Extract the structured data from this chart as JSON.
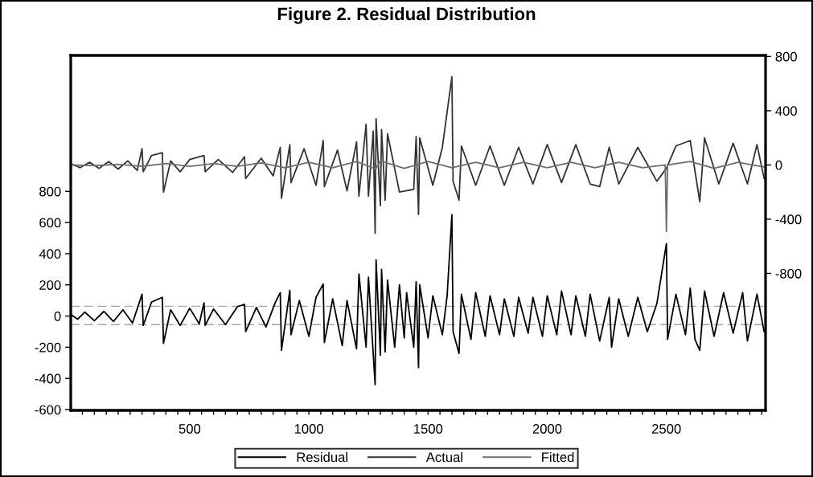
{
  "chart_data": {
    "type": "line",
    "title": "Figure 2. Residual Distribution",
    "xlim": [
      1,
      2916
    ],
    "xticks": [
      {
        "value": 50,
        "label": null
      },
      {
        "value": 100,
        "label": null
      },
      {
        "value": 150,
        "label": null
      },
      {
        "value": 200,
        "label": null
      },
      {
        "value": 250,
        "label": null
      },
      {
        "value": 300,
        "label": null
      },
      {
        "value": 350,
        "label": null
      },
      {
        "value": 400,
        "label": null
      },
      {
        "value": 450,
        "label": null
      },
      500,
      {
        "value": 550,
        "label": null
      },
      {
        "value": 600,
        "label": null
      },
      {
        "value": 650,
        "label": null
      },
      {
        "value": 700,
        "label": null
      },
      {
        "value": 750,
        "label": null
      },
      {
        "value": 800,
        "label": null
      },
      {
        "value": 850,
        "label": null
      },
      {
        "value": 900,
        "label": null
      },
      {
        "value": 950,
        "label": null
      },
      1000,
      {
        "value": 1050,
        "label": null
      },
      {
        "value": 1100,
        "label": null
      },
      {
        "value": 1150,
        "label": null
      },
      {
        "value": 1200,
        "label": null
      },
      {
        "value": 1250,
        "label": null
      },
      {
        "value": 1300,
        "label": null
      },
      {
        "value": 1350,
        "label": null
      },
      {
        "value": 1400,
        "label": null
      },
      {
        "value": 1450,
        "label": null
      },
      1500,
      {
        "value": 1550,
        "label": null
      },
      {
        "value": 1600,
        "label": null
      },
      {
        "value": 1650,
        "label": null
      },
      {
        "value": 1700,
        "label": null
      },
      {
        "value": 1750,
        "label": null
      },
      {
        "value": 1800,
        "label": null
      },
      {
        "value": 1850,
        "label": null
      },
      {
        "value": 1900,
        "label": null
      },
      {
        "value": 1950,
        "label": null
      },
      2000,
      {
        "value": 2050,
        "label": null
      },
      {
        "value": 2100,
        "label": null
      },
      {
        "value": 2150,
        "label": null
      },
      {
        "value": 2200,
        "label": null
      },
      {
        "value": 2250,
        "label": null
      },
      {
        "value": 2300,
        "label": null
      },
      {
        "value": 2350,
        "label": null
      },
      {
        "value": 2400,
        "label": null
      },
      {
        "value": 2450,
        "label": null
      },
      2500,
      {
        "value": 2550,
        "label": null
      },
      {
        "value": 2600,
        "label": null
      },
      {
        "value": 2650,
        "label": null
      },
      {
        "value": 2700,
        "label": null
      },
      {
        "value": 2750,
        "label": null
      },
      {
        "value": 2800,
        "label": null
      },
      {
        "value": 2850,
        "label": null
      },
      {
        "value": 2900,
        "label": null
      }
    ],
    "ylim": [
      -605,
      1672
    ],
    "yticks": [
      -600,
      -400,
      -200,
      0,
      200,
      400,
      600,
      800
    ],
    "y2lim": [
      -1810,
      808
    ],
    "y2ticks": [
      -800,
      -400,
      0,
      400,
      800
    ],
    "grid": false,
    "legend": "bottom",
    "line_style": "solid",
    "ref_lines": [
      {
        "axis": "y",
        "value": 63,
        "color": "#a6a6a6",
        "line_style": "dashed"
      },
      {
        "axis": "y",
        "value": -55,
        "color": "#a6a6a6",
        "line_style": "dashed"
      }
    ],
    "series": [
      {
        "name": "Residual",
        "color": "#000000",
        "x": [
          1,
          30,
          60,
          100,
          140,
          180,
          220,
          260,
          300,
          305,
          340,
          385,
          390,
          420,
          460,
          500,
          540,
          560,
          565,
          600,
          650,
          700,
          730,
          735,
          780,
          820,
          860,
          880,
          885,
          920,
          925,
          960,
          1000,
          1030,
          1060,
          1065,
          1100,
          1140,
          1160,
          1200,
          1210,
          1240,
          1250,
          1278,
          1282,
          1300,
          1305,
          1320,
          1330,
          1360,
          1380,
          1400,
          1410,
          1440,
          1450,
          1460,
          1465,
          1500,
          1520,
          1560,
          1580,
          1600,
          1605,
          1630,
          1640,
          1680,
          1700,
          1740,
          1760,
          1800,
          1820,
          1860,
          1880,
          1920,
          1940,
          1980,
          2000,
          2040,
          2060,
          2100,
          2120,
          2160,
          2180,
          2220,
          2260,
          2270,
          2300,
          2340,
          2380,
          2420,
          2460,
          2500,
          2505,
          2540,
          2580,
          2600,
          2620,
          2640,
          2660,
          2700,
          2740,
          2780,
          2820,
          2840,
          2880,
          2910
        ],
        "values": [
          10,
          -20,
          25,
          -30,
          30,
          -35,
          40,
          -45,
          140,
          -60,
          90,
          120,
          -175,
          40,
          -60,
          50,
          -50,
          85,
          -60,
          45,
          -55,
          60,
          75,
          -100,
          55,
          -70,
          90,
          150,
          -220,
          165,
          -120,
          100,
          -130,
          120,
          205,
          -170,
          110,
          -190,
          100,
          -210,
          270,
          -200,
          250,
          -440,
          360,
          -250,
          300,
          -230,
          230,
          -200,
          200,
          -140,
          150,
          -200,
          220,
          -330,
          200,
          -140,
          130,
          -120,
          130,
          650,
          -100,
          -240,
          140,
          -150,
          150,
          -130,
          130,
          -120,
          110,
          -130,
          120,
          -110,
          120,
          -130,
          130,
          -120,
          160,
          -120,
          130,
          -130,
          140,
          -160,
          120,
          -200,
          110,
          -130,
          120,
          -100,
          80,
          465,
          -150,
          140,
          -120,
          180,
          -150,
          -220,
          160,
          -130,
          150,
          -110,
          150,
          -160,
          140,
          -100
        ]
      },
      {
        "name": "Actual",
        "color": "#333333",
        "axis": "y2",
        "x": [
          1,
          40,
          80,
          120,
          160,
          200,
          240,
          280,
          300,
          305,
          340,
          385,
          390,
          420,
          460,
          500,
          560,
          565,
          620,
          680,
          730,
          735,
          800,
          850,
          880,
          885,
          920,
          925,
          980,
          1030,
          1060,
          1065,
          1120,
          1160,
          1200,
          1210,
          1240,
          1250,
          1270,
          1278,
          1282,
          1300,
          1305,
          1320,
          1330,
          1380,
          1440,
          1450,
          1460,
          1465,
          1520,
          1560,
          1600,
          1605,
          1630,
          1640,
          1700,
          1760,
          1820,
          1880,
          1940,
          2000,
          2060,
          2120,
          2180,
          2220,
          2260,
          2300,
          2380,
          2460,
          2500,
          2540,
          2600,
          2640,
          2660,
          2720,
          2780,
          2840,
          2880,
          2910
        ],
        "values": [
          10,
          -20,
          20,
          -25,
          25,
          -30,
          30,
          -40,
          120,
          -50,
          70,
          90,
          -200,
          30,
          -50,
          40,
          70,
          -50,
          40,
          -55,
          60,
          -100,
          50,
          -80,
          130,
          -245,
          150,
          -130,
          120,
          -150,
          180,
          -160,
          110,
          -190,
          170,
          -230,
          300,
          -230,
          250,
          -503,
          340,
          -300,
          260,
          -260,
          230,
          -200,
          -180,
          210,
          -365,
          200,
          -150,
          130,
          650,
          -120,
          -260,
          140,
          -150,
          140,
          -150,
          130,
          -140,
          150,
          -130,
          150,
          -140,
          -160,
          130,
          -140,
          130,
          -120,
          -25,
          140,
          180,
          -270,
          200,
          -140,
          160,
          -140,
          150,
          -100
        ]
      },
      {
        "name": "Fitted",
        "color": "#6e6e6e",
        "axis": "y2",
        "x": [
          1,
          100,
          200,
          300,
          400,
          500,
          600,
          700,
          800,
          900,
          1000,
          1100,
          1200,
          1280,
          1300,
          1400,
          1500,
          1600,
          1700,
          1800,
          1900,
          2000,
          2100,
          2200,
          2300,
          2400,
          2495,
          2500,
          2505,
          2600,
          2700,
          2800,
          2910
        ],
        "values": [
          0,
          -5,
          5,
          -10,
          10,
          -10,
          10,
          -10,
          15,
          -20,
          20,
          -20,
          25,
          -30,
          30,
          -25,
          25,
          -20,
          20,
          -20,
          20,
          -20,
          20,
          -20,
          20,
          -20,
          0,
          -490,
          0,
          25,
          -25,
          20,
          -15
        ]
      }
    ]
  }
}
